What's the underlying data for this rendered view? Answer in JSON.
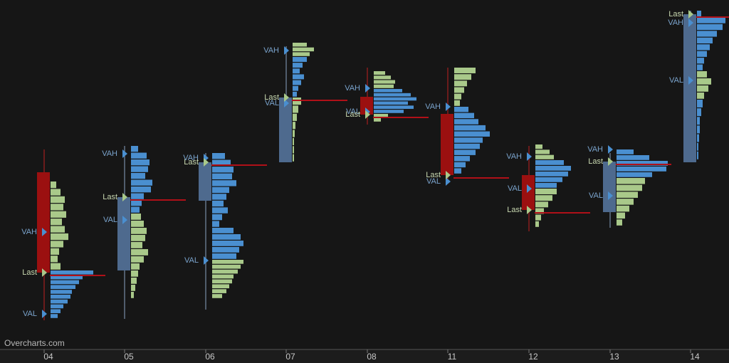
{
  "chart_data": {
    "type": "candlestick",
    "watermark": "Overcharts.com",
    "level_labels": {
      "vah": "VAH",
      "val": "VAL",
      "last": "Last"
    },
    "categories": [
      "04",
      "05",
      "06",
      "07",
      "08",
      "11",
      "12",
      "13",
      "14"
    ],
    "ylim": [
      0,
      490
    ],
    "up_color": "#4e6a8e",
    "down_color": "#9b1010",
    "last_line_color": "#b01018",
    "vah_val_color": "#4a8fd0",
    "last_marker_color": "#a9c98a",
    "days": [
      {
        "open": 248,
        "high": 280,
        "low": 40,
        "close": 107,
        "vah": 164,
        "val": 49,
        "last": 107,
        "profile": [
          {
            "color": "#a9c98a",
            "top": 235,
            "bottom": 110,
            "volumes": [
              8,
              14,
              20,
              18,
              22,
              16,
              20,
              25,
              18,
              12,
              10,
              14
            ]
          },
          {
            "color": "#4a8fd0",
            "top": 110,
            "bottom": 42,
            "volumes": [
              60,
              45,
              40,
              35,
              30,
              28,
              24,
              18,
              14,
              10
            ]
          }
        ]
      },
      {
        "open": 110,
        "high": 285,
        "low": 42,
        "close": 213,
        "vah": 274,
        "val": 181,
        "last": 213,
        "profile": [
          {
            "color": "#4a8fd0",
            "top": 285,
            "bottom": 190,
            "volumes": [
              10,
              22,
              26,
              24,
              20,
              30,
              28,
              18,
              15,
              12
            ]
          },
          {
            "color": "#a9c98a",
            "top": 190,
            "bottom": 70,
            "volumes": [
              14,
              18,
              22,
              20,
              16,
              24,
              18,
              12,
              10,
              8,
              6,
              4
            ]
          }
        ]
      },
      {
        "open": 208,
        "high": 275,
        "low": 55,
        "close": 262,
        "vah": 268,
        "val": 124,
        "last": 262,
        "profile": [
          {
            "color": "#4a8fd0",
            "top": 275,
            "bottom": 170,
            "volumes": [
              18,
              26,
              30,
              28,
              34,
              24,
              20,
              16,
              22,
              14,
              10
            ]
          },
          {
            "color": "#4a8fd0",
            "top": 170,
            "bottom": 125,
            "volumes": [
              30,
              40,
              44,
              38,
              34
            ]
          },
          {
            "color": "#a9c98a",
            "top": 125,
            "bottom": 70,
            "volumes": [
              44,
              40,
              36,
              30,
              28,
              24,
              20,
              14
            ]
          }
        ]
      },
      {
        "open": 262,
        "high": 425,
        "low": 262,
        "close": 353,
        "vah": 419,
        "val": 345,
        "last": 353,
        "profile": [
          {
            "color": "#a9c98a",
            "top": 430,
            "bottom": 410,
            "volumes": [
              20,
              30,
              24
            ]
          },
          {
            "color": "#4a8fd0",
            "top": 410,
            "bottom": 353,
            "volumes": [
              20,
              14,
              10,
              16,
              12,
              8,
              6
            ]
          },
          {
            "color": "#a9c98a",
            "top": 353,
            "bottom": 262,
            "volumes": [
              12,
              8,
              6,
              4,
              3,
              2,
              2,
              2
            ]
          }
        ]
      },
      {
        "open": 354,
        "high": 395,
        "low": 315,
        "close": 329,
        "vah": 366,
        "val": 333,
        "last": 329,
        "profile": [
          {
            "color": "#a9c98a",
            "top": 390,
            "bottom": 365,
            "volumes": [
              16,
              24,
              30,
              28
            ]
          },
          {
            "color": "#4a8fd0",
            "top": 365,
            "bottom": 330,
            "volumes": [
              40,
              52,
              60,
              48,
              56,
              42
            ]
          },
          {
            "color": "#a9c98a",
            "top": 330,
            "bottom": 318,
            "volumes": [
              20,
              10
            ]
          }
        ]
      },
      {
        "open": 330,
        "high": 395,
        "low": 235,
        "close": 244,
        "vah": 340,
        "val": 235,
        "last": 244,
        "profile": [
          {
            "color": "#a9c98a",
            "top": 395,
            "bottom": 340,
            "volumes": [
              30,
              24,
              18,
              14,
              10,
              8
            ]
          },
          {
            "color": "#4a8fd0",
            "top": 340,
            "bottom": 245,
            "volumes": [
              20,
              28,
              34,
              44,
              50,
              40,
              36,
              30,
              22,
              16,
              10
            ]
          }
        ]
      },
      {
        "open": 244,
        "high": 285,
        "low": 165,
        "close": 195,
        "vah": 270,
        "val": 225,
        "last": 195,
        "profile": [
          {
            "color": "#a9c98a",
            "top": 287,
            "bottom": 265,
            "volumes": [
              10,
              20,
              26
            ]
          },
          {
            "color": "#4a8fd0",
            "top": 265,
            "bottom": 225,
            "volumes": [
              40,
              50,
              46,
              38,
              30
            ]
          },
          {
            "color": "#a9c98a",
            "top": 225,
            "bottom": 170,
            "volumes": [
              30,
              24,
              18,
              12,
              8,
              5
            ]
          }
        ]
      },
      {
        "open": 192,
        "high": 275,
        "low": 170,
        "close": 263,
        "vah": 280,
        "val": 215,
        "last": 263,
        "profile": [
          {
            "color": "#4a8fd0",
            "top": 280,
            "bottom": 240,
            "volumes": [
              24,
              46,
              72,
              70,
              50
            ]
          },
          {
            "color": "#a9c98a",
            "top": 240,
            "bottom": 172,
            "volumes": [
              40,
              36,
              30,
              24,
              18,
              12,
              8
            ]
          }
        ]
      },
      {
        "open": 262,
        "high": 475,
        "low": 262,
        "close": 470,
        "vah": 458,
        "val": 377,
        "last": 470,
        "profile": [
          {
            "color": "#4a8fd0",
            "top": 475,
            "bottom": 390,
            "volumes": [
              6,
              40,
              36,
              28,
              22,
              18,
              14,
              10,
              8
            ]
          },
          {
            "color": "#a9c98a",
            "top": 390,
            "bottom": 350,
            "volumes": [
              14,
              20,
              16,
              10
            ]
          },
          {
            "color": "#4a8fd0",
            "top": 350,
            "bottom": 265,
            "volumes": [
              8,
              6,
              4,
              4,
              3,
              2,
              2
            ]
          }
        ]
      }
    ]
  }
}
